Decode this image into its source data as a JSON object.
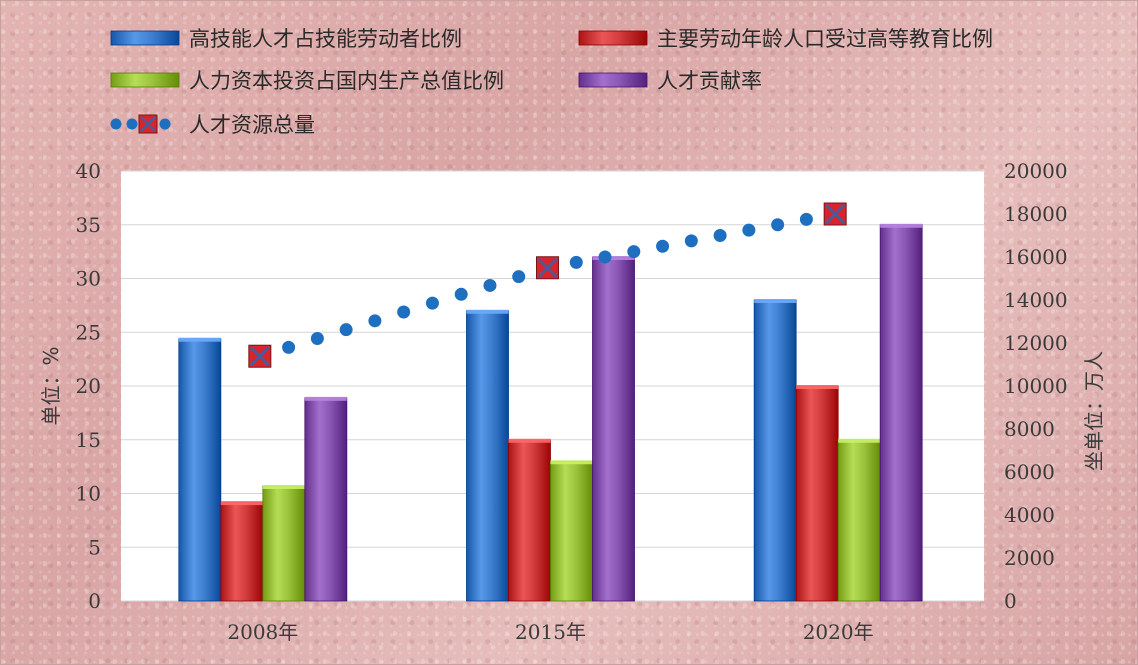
{
  "chart_data": {
    "type": "bar",
    "categories": [
      "2008年",
      "2015年",
      "2020年"
    ],
    "series": [
      {
        "name": "高技能人才占技能劳动者比例",
        "values": [
          24.4,
          27,
          28
        ],
        "color": "#3f7fd0",
        "axis": "left"
      },
      {
        "name": "主要劳动年龄人口受过高等教育比例",
        "values": [
          9.2,
          15,
          20
        ],
        "color": "#d23c3c",
        "axis": "left"
      },
      {
        "name": "人力资本投资占国内生产总值比例",
        "values": [
          10.7,
          13,
          15
        ],
        "color": "#9cc43c",
        "axis": "left"
      },
      {
        "name": "人才贡献率",
        "values": [
          18.9,
          32,
          35
        ],
        "color": "#8a58b4",
        "axis": "left"
      }
    ],
    "line_series": {
      "name": "人才资源总量",
      "values": [
        11385,
        15500,
        18000
      ],
      "color": "#1f6fc0",
      "marker_color": "#d8242a",
      "axis": "right",
      "style": "dotted-with-x-markers"
    },
    "y_left": {
      "label": "单位：%",
      "ylim": [
        0,
        40
      ],
      "ticks": [
        "0",
        "5",
        "10",
        "15",
        "20",
        "25",
        "30",
        "35",
        "40"
      ]
    },
    "y_right": {
      "label": "坐单位：万人",
      "ylim": [
        0,
        20000
      ],
      "ticks": [
        "0",
        "2000",
        "4000",
        "6000",
        "8000",
        "10000",
        "12000",
        "14000",
        "16000",
        "18000",
        "20000"
      ]
    },
    "grid": true,
    "legend_position": "top"
  }
}
